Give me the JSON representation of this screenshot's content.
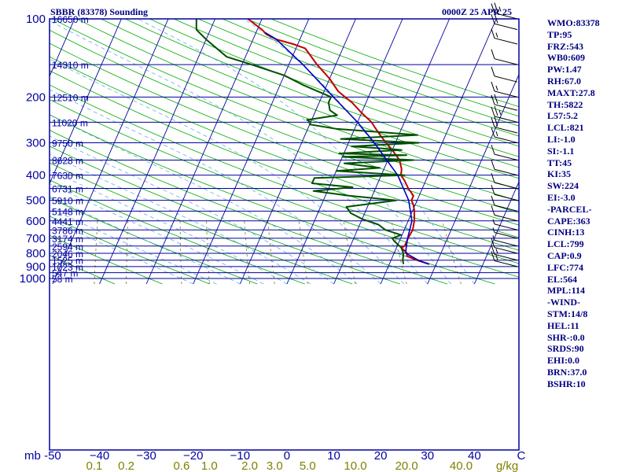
{
  "title": "SBBR (83378) Sounding",
  "time": "0000Z 25 APR 25",
  "indices": [
    "WMO:83378",
    "TP:95",
    "FRZ:543",
    "WB0:609",
    "PW:1.47",
    "RH:67.0",
    "MAXT:27.8",
    "TH:5822",
    "L57:5.2",
    "LCL:821",
    "LI:-1.0",
    "SI:-1.1",
    "TT:45",
    "KI:35",
    "SW:224",
    "EI:-3.0",
    "-PARCEL-",
    "CAPE:363",
    "CINH:13",
    "LCL:799",
    "CAP:0.9",
    "LFC:774",
    "EL:564",
    "MPL:114",
    "-WIND-",
    "STM:14/8",
    "HEL:11",
    "SHR-:0.0",
    "SRDS:90",
    "EHI:0.0",
    "BRN:37.0",
    "BSHR:10"
  ],
  "colors": {
    "frame": "#0000a0",
    "dry_adiabat": "#00aa00",
    "moist_adiabat": "#66aaee",
    "mixing_ratio": "#808000",
    "temperature": "#c00000",
    "dewpoint": "#005000",
    "parcel": "#0000c0",
    "wind_barb": "#000000",
    "tick_labels": "#0000a0",
    "mixing_labels": "#808000"
  },
  "chart_data": {
    "type": "line",
    "chart_subtype": "skew-T log-P sounding",
    "y_scale": "log",
    "ylim": [
      1050,
      100
    ],
    "xlim": [
      -50,
      50
    ],
    "pressure_ticks": [
      100,
      200,
      300,
      400,
      500,
      600,
      700,
      800,
      900,
      1000
    ],
    "pressure_tick_labels": [
      "100",
      "200",
      "300",
      "400",
      "500",
      "600",
      "700",
      "800",
      "900",
      "1000"
    ],
    "y_unit_label": "mb",
    "temperature_ticks": [
      -50,
      -40,
      -30,
      -20,
      -10,
      0,
      10,
      20,
      30,
      40,
      50
    ],
    "temperature_tick_labels": [
      "-50",
      "−40",
      "−30",
      "−20",
      "−10",
      "0",
      "10",
      "20",
      "30",
      "40",
      "C"
    ],
    "mixing_ratio_labels": [
      {
        "g": 0.1,
        "label": "0.1"
      },
      {
        "g": 0.2,
        "label": "0.2"
      },
      {
        "g": 0.6,
        "label": "0.6"
      },
      {
        "g": 1.0,
        "label": "1.0"
      },
      {
        "g": 2.0,
        "label": "2.0"
      },
      {
        "g": 3.0,
        "label": "3.0"
      },
      {
        "g": 5.0,
        "label": "5.0"
      },
      {
        "g": 10.0,
        "label": "10.0"
      },
      {
        "g": 20.0,
        "label": "20.0"
      },
      {
        "g": 40.0,
        "label": "40.0"
      }
    ],
    "mixing_ratio_unit": "g/kg",
    "height_levels": [
      {
        "p": 100,
        "label": "16650 m"
      },
      {
        "p": 150,
        "label": "14310 m"
      },
      {
        "p": 200,
        "label": "12510 m"
      },
      {
        "p": 250,
        "label": "11020 m"
      },
      {
        "p": 300,
        "label": "9750 m"
      },
      {
        "p": 350,
        "label": "8628 m"
      },
      {
        "p": 400,
        "label": "7630 m"
      },
      {
        "p": 450,
        "label": "6731 m"
      },
      {
        "p": 500,
        "label": "5910 m"
      },
      {
        "p": 550,
        "label": "5148 m"
      },
      {
        "p": 600,
        "label": "4441 m"
      },
      {
        "p": 650,
        "label": "3786 m"
      },
      {
        "p": 700,
        "label": "3174 m"
      },
      {
        "p": 750,
        "label": "2594 m"
      },
      {
        "p": 800,
        "label": "2046 m"
      },
      {
        "p": 850,
        "label": "1525 m"
      },
      {
        "p": 900,
        "label": "1023 m"
      },
      {
        "p": 950,
        "label": "547 m"
      },
      {
        "p": 1000,
        "label": "58 m"
      }
    ],
    "series": [
      {
        "key": "temperature",
        "points": [
          [
            881,
            28.5
          ],
          [
            850,
            25.5
          ],
          [
            820,
            23
          ],
          [
            800,
            22.8
          ],
          [
            760,
            21
          ],
          [
            750,
            21.6
          ],
          [
            700,
            21.6
          ],
          [
            650,
            21.8
          ],
          [
            600,
            21.3
          ],
          [
            550,
            20.4
          ],
          [
            520,
            19.6
          ],
          [
            500,
            18.8
          ],
          [
            480,
            18.8
          ],
          [
            450,
            17
          ],
          [
            420,
            15.5
          ],
          [
            400,
            14.2
          ],
          [
            380,
            13.8
          ],
          [
            350,
            12.5
          ],
          [
            320,
            10
          ],
          [
            300,
            8
          ],
          [
            280,
            6
          ],
          [
            260,
            4
          ],
          [
            250,
            3
          ],
          [
            230,
            0
          ],
          [
            210,
            -3
          ],
          [
            200,
            -5
          ],
          [
            190,
            -7
          ],
          [
            170,
            -10
          ],
          [
            150,
            -14
          ],
          [
            130,
            -18
          ],
          [
            125,
            -21
          ],
          [
            120,
            -25
          ],
          [
            115,
            -27.5
          ],
          [
            110,
            -29
          ],
          [
            100,
            -33
          ]
        ]
      },
      {
        "key": "dewpoint",
        "points": [
          [
            880,
            23
          ],
          [
            850,
            22.5
          ],
          [
            800,
            22
          ],
          [
            760,
            21
          ],
          [
            720,
            19
          ],
          [
            700,
            18.2
          ],
          [
            680,
            19.8
          ],
          [
            650,
            16
          ],
          [
            620,
            14
          ],
          [
            590,
            10
          ],
          [
            560,
            7
          ],
          [
            530,
            5.5
          ],
          [
            500,
            15.5
          ],
          [
            480,
            5
          ],
          [
            460,
            -3
          ],
          [
            445,
            5
          ],
          [
            430,
            -4
          ],
          [
            410,
            -4
          ],
          [
            400,
            15
          ],
          [
            385,
            0
          ],
          [
            375,
            9
          ],
          [
            360,
            1
          ],
          [
            350,
            15.5
          ],
          [
            340,
            0
          ],
          [
            335,
            13.5
          ],
          [
            330,
            -1
          ],
          [
            320,
            12
          ],
          [
            315,
            7
          ],
          [
            310,
            1
          ],
          [
            300,
            15
          ],
          [
            290,
            -2
          ],
          [
            280,
            14
          ],
          [
            265,
            -4
          ],
          [
            255,
            -10
          ],
          [
            250,
            -10
          ],
          [
            245,
            -11
          ],
          [
            240,
            -8
          ],
          [
            235,
            -5
          ],
          [
            225,
            -7
          ],
          [
            210,
            -8
          ],
          [
            200,
            -8
          ],
          [
            180,
            -15
          ],
          [
            165,
            -20
          ],
          [
            150,
            -28
          ],
          [
            140,
            -34
          ],
          [
            120,
            -40
          ],
          [
            110,
            -43
          ],
          [
            100,
            -44
          ]
        ]
      },
      {
        "key": "parcel",
        "points": [
          [
            881,
            28.5
          ],
          [
            850,
            25.8
          ],
          [
            799,
            22.5
          ],
          [
            774,
            22.2
          ],
          [
            700,
            21.5
          ],
          [
            600,
            20.8
          ],
          [
            500,
            18.2
          ],
          [
            400,
            13.5
          ],
          [
            300,
            5.5
          ],
          [
            250,
            0
          ],
          [
            200,
            -7.5
          ],
          [
            150,
            -17
          ],
          [
            120,
            -25
          ],
          [
            113,
            -28
          ]
        ]
      }
    ],
    "wind_barbs": [
      {
        "p": 100,
        "kt": 25
      },
      {
        "p": 110,
        "kt": 20
      },
      {
        "p": 125,
        "kt": 15
      },
      {
        "p": 150,
        "kt": 10
      },
      {
        "p": 175,
        "kt": 10
      },
      {
        "p": 200,
        "kt": 15
      },
      {
        "p": 225,
        "kt": 20
      },
      {
        "p": 250,
        "kt": 25
      },
      {
        "p": 275,
        "kt": 20
      },
      {
        "p": 300,
        "kt": 15
      },
      {
        "p": 350,
        "kt": 10
      },
      {
        "p": 400,
        "kt": 10
      },
      {
        "p": 450,
        "kt": 10
      },
      {
        "p": 500,
        "kt": 10
      },
      {
        "p": 550,
        "kt": 10
      },
      {
        "p": 600,
        "kt": 10
      },
      {
        "p": 650,
        "kt": 5
      },
      {
        "p": 700,
        "kt": 5
      },
      {
        "p": 750,
        "kt": 5
      },
      {
        "p": 800,
        "kt": 10
      },
      {
        "p": 850,
        "kt": 15
      },
      {
        "p": 900,
        "kt": 15
      }
    ],
    "grid": true,
    "legend": "right"
  }
}
